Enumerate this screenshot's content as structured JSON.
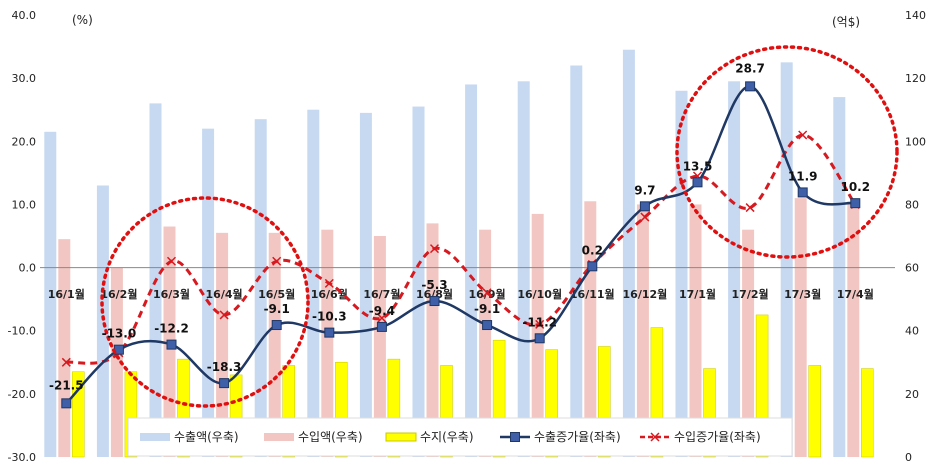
{
  "chart_data": {
    "type": "bar+line",
    "categories": [
      "16/1월",
      "16/2월",
      "16/3월",
      "16/4월",
      "16/5월",
      "16/6월",
      "16/7월",
      "16/8월",
      "16/9월",
      "16/10월",
      "16/11월",
      "16/12월",
      "17/1월",
      "17/2월",
      "17/3월",
      "17/4월"
    ],
    "left_axis": {
      "unit": "(%)",
      "min": -30,
      "max": 40,
      "ticks": [
        "-30.0",
        "-20.0",
        "-10.0",
        "0.0",
        "10.0",
        "20.0",
        "30.0",
        "40.0"
      ]
    },
    "right_axis": {
      "unit": "(억$)",
      "min": 0,
      "max": 140,
      "ticks": [
        "0",
        "20",
        "40",
        "60",
        "80",
        "100",
        "120",
        "140"
      ]
    },
    "series": [
      {
        "name": "수출액(우축)",
        "axis": "right",
        "kind": "bar",
        "color": "#c6d9f1",
        "values": [
          103,
          86,
          112,
          104,
          107,
          110,
          109,
          111,
          118,
          119,
          124,
          129,
          116,
          119,
          125,
          114
        ]
      },
      {
        "name": "수입액(우축)",
        "axis": "right",
        "kind": "bar",
        "color": "#f2c7c3",
        "values": [
          69,
          60,
          73,
          71,
          71,
          72,
          70,
          74,
          72,
          77,
          81,
          80,
          80,
          72,
          82,
          81
        ]
      },
      {
        "name": "수지(우축)",
        "axis": "right",
        "kind": "bar",
        "color": "#ffff00",
        "values": [
          27,
          27,
          31,
          26,
          29,
          30,
          31,
          29,
          37,
          34,
          35,
          41,
          28,
          45,
          29,
          28
        ]
      },
      {
        "name": "수출증가율(좌축)",
        "axis": "left",
        "kind": "line",
        "color": "#1f3864",
        "values": [
          -21.5,
          -13.0,
          -12.2,
          -18.3,
          -9.1,
          -10.3,
          -9.4,
          -5.3,
          -9.1,
          -11.2,
          0.2,
          9.7,
          13.5,
          28.7,
          11.9,
          10.2
        ],
        "labels": [
          "-21.5",
          "-13.0",
          "-12.2",
          "-18.3",
          "-9.1",
          "-10.3",
          "-9.4",
          "-5.3",
          "-9.1",
          "-11.2",
          "0.2",
          "9.7",
          "13.5",
          "28.7",
          "11.9",
          "10.2"
        ]
      },
      {
        "name": "수입증가율(좌축)",
        "axis": "left",
        "kind": "line-dashed",
        "color": "#d71920",
        "values": [
          -15.0,
          -13.5,
          1.0,
          -7.5,
          1.0,
          -2.5,
          -8.0,
          3.0,
          -4.0,
          -9.0,
          0.5,
          8.0,
          14.5,
          9.5,
          21.0,
          10.0
        ]
      }
    ],
    "legend_position": "bottom",
    "grid": false
  }
}
